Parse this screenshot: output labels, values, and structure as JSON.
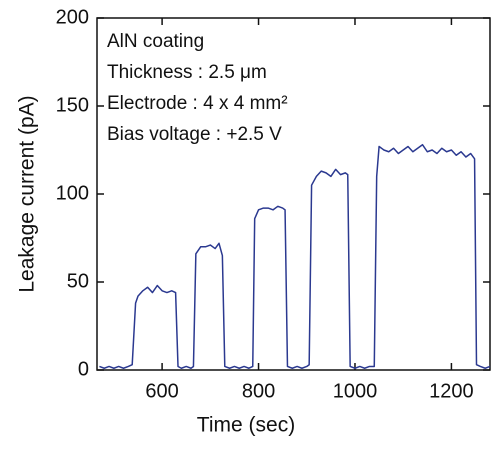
{
  "chart_data": {
    "type": "line",
    "xlabel": "Time (sec)",
    "ylabel": "Leakage current (pA)",
    "annotations": [
      "AlN coating",
      "Thickness : 2.5 μm",
      "Electrode : 4 x 4 mm²",
      "Bias voltage : +2.5 V"
    ],
    "color": "#2b3990",
    "x": [
      470,
      480,
      490,
      500,
      510,
      520,
      530,
      538,
      545,
      550,
      560,
      570,
      580,
      590,
      600,
      610,
      620,
      628,
      633,
      640,
      650,
      660,
      665,
      670,
      680,
      690,
      700,
      710,
      718,
      725,
      730,
      740,
      750,
      760,
      770,
      780,
      788,
      792,
      800,
      810,
      820,
      830,
      840,
      850,
      855,
      860,
      870,
      880,
      890,
      900,
      905,
      910,
      920,
      930,
      940,
      950,
      960,
      970,
      980,
      985,
      990,
      1000,
      1010,
      1020,
      1030,
      1040,
      1045,
      1050,
      1060,
      1070,
      1080,
      1090,
      1100,
      1110,
      1120,
      1130,
      1140,
      1150,
      1160,
      1170,
      1180,
      1190,
      1200,
      1210,
      1220,
      1230,
      1240,
      1248,
      1252,
      1260,
      1270,
      1280
    ],
    "values": [
      2,
      1,
      2,
      1,
      2,
      1,
      2,
      3,
      38,
      42,
      45,
      47,
      44,
      48,
      45,
      44,
      45,
      44,
      2,
      1,
      2,
      1,
      2,
      66,
      70,
      70,
      71,
      69,
      72,
      65,
      2,
      1,
      2,
      1,
      2,
      1,
      2,
      86,
      91,
      92,
      92,
      91,
      93,
      92,
      91,
      2,
      1,
      2,
      1,
      2,
      3,
      105,
      110,
      113,
      112,
      110,
      114,
      111,
      112,
      111,
      2,
      1,
      2,
      1,
      2,
      2,
      110,
      127,
      125,
      124,
      126,
      123,
      125,
      127,
      124,
      126,
      128,
      124,
      125,
      123,
      126,
      124,
      125,
      122,
      124,
      121,
      123,
      120,
      3,
      2,
      1,
      2
    ],
    "xlim": [
      465,
      1280
    ],
    "ylim": [
      0,
      200
    ],
    "xticks": [
      600,
      800,
      1000,
      1200
    ],
    "yticks": [
      0,
      50,
      100,
      150,
      200
    ]
  }
}
